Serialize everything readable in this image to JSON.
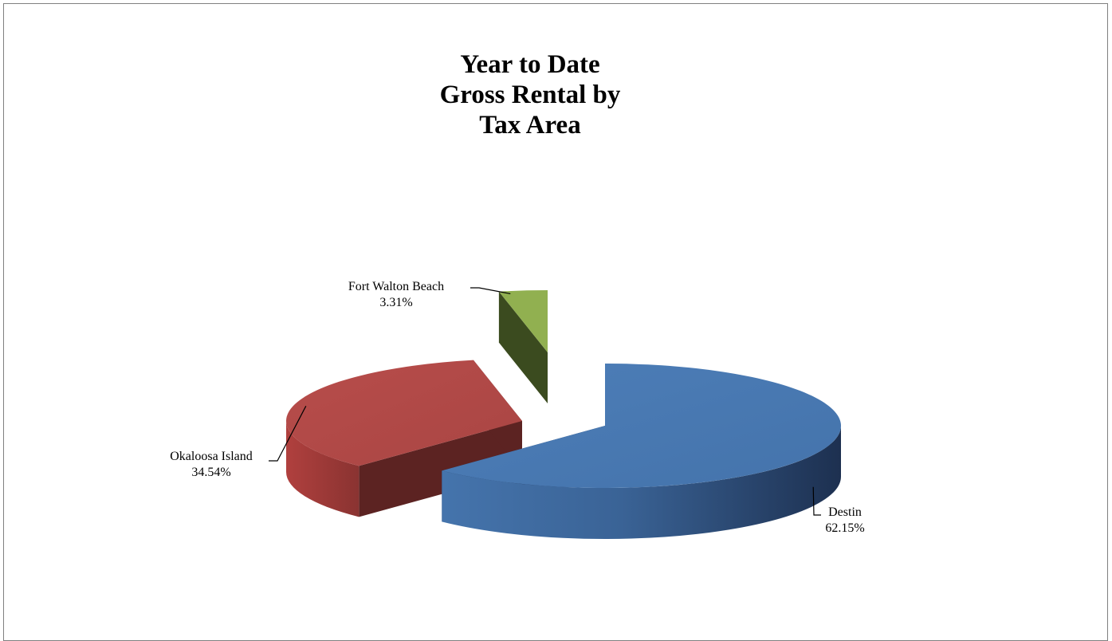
{
  "chart_data": {
    "type": "pie",
    "title_lines": [
      "Year to Date",
      "Gross Rental by",
      "Tax Area"
    ],
    "slices": [
      {
        "name": "Destin",
        "value": 62.15,
        "label": "62.15%",
        "color": "#4a7ab4",
        "dark_color": "#22375a"
      },
      {
        "name": "Okaloosa Island",
        "value": 34.54,
        "label": "34.54%",
        "color": "#b54a48",
        "dark_color": "#5c2322"
      },
      {
        "name": "Fort Walton Beach",
        "value": 3.31,
        "label": "3.31%",
        "color": "#91b050",
        "dark_color": "#3b4b1f"
      }
    ],
    "legend": "none",
    "style": "3d-exploded"
  }
}
